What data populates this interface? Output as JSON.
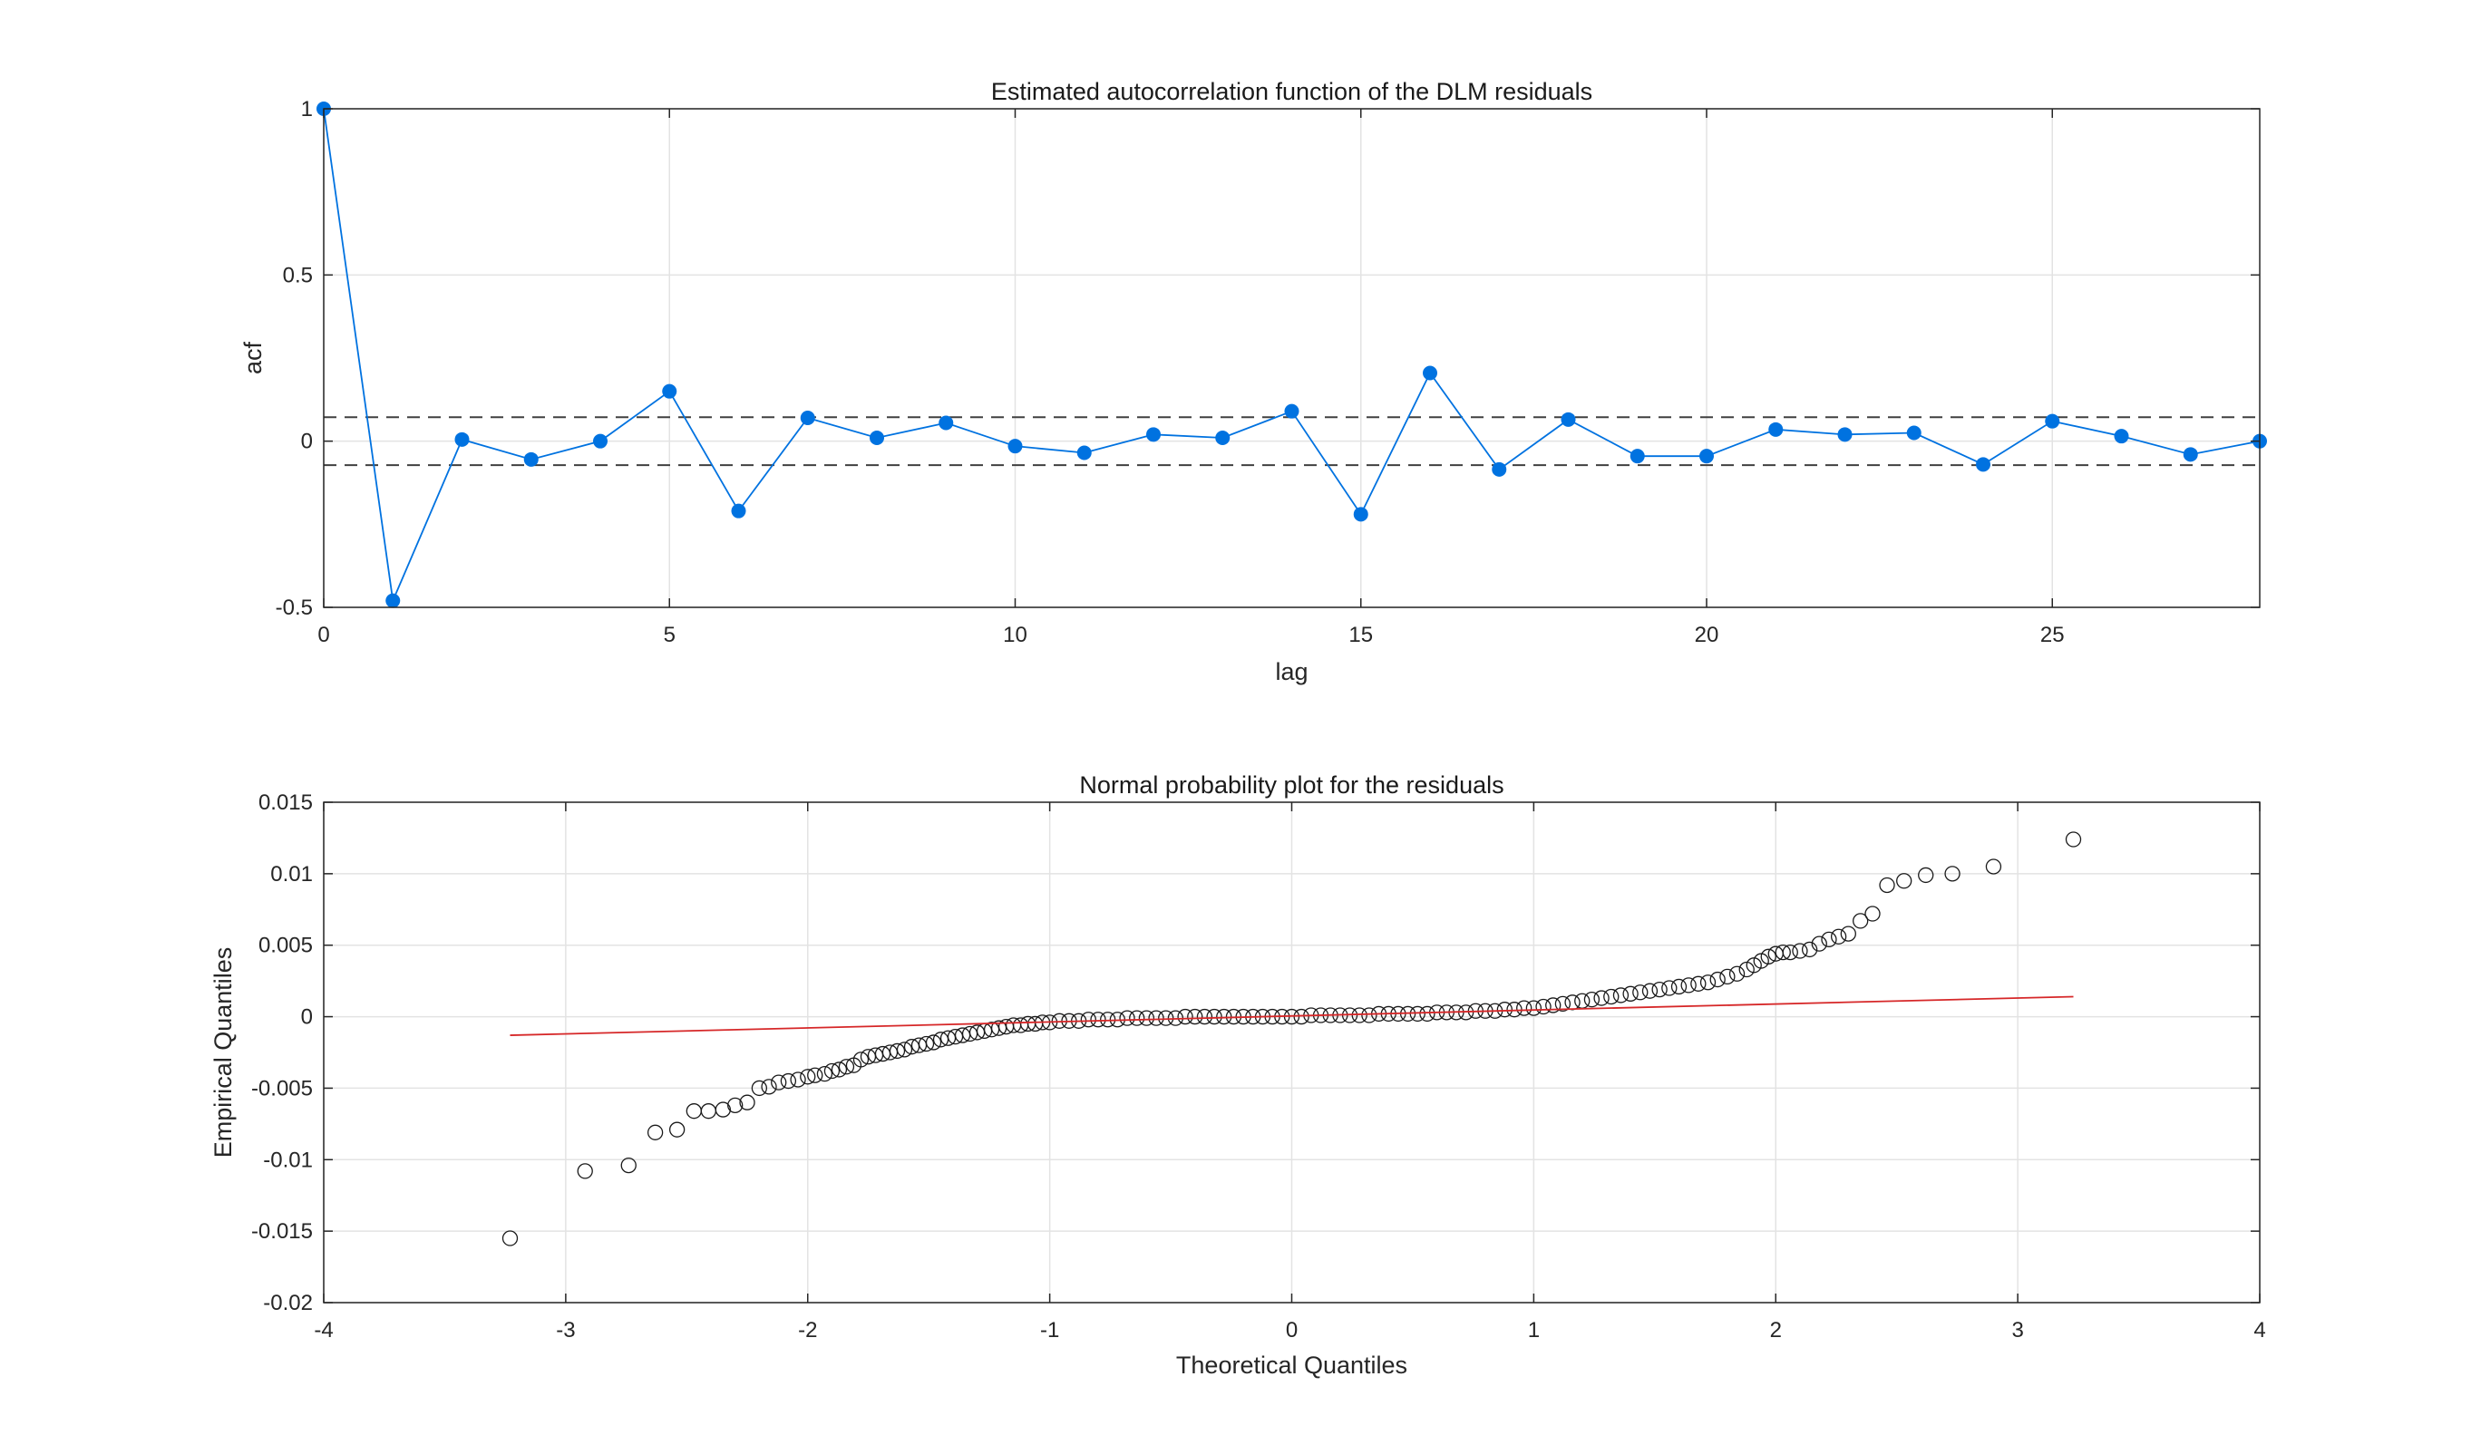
{
  "chart_data": [
    {
      "type": "line",
      "title": "Estimated autocorrelation function of the DLM residuals",
      "xlabel": "lag",
      "ylabel": "acf",
      "xlim": [
        0,
        28
      ],
      "ylim": [
        -0.5,
        1
      ],
      "xticks": [
        0,
        5,
        10,
        15,
        20,
        25
      ],
      "xtick_labels": [
        "0",
        "5",
        "10",
        "15",
        "20",
        "25"
      ],
      "yticks": [
        -0.5,
        0,
        0.5,
        1
      ],
      "ytick_labels": [
        "-0.5",
        "0",
        "0.5",
        "1"
      ],
      "grid": true,
      "series": [
        {
          "color": "#0072E0",
          "x": [
            0,
            1,
            2,
            3,
            4,
            5,
            6,
            7,
            8,
            9,
            10,
            11,
            12,
            13,
            14,
            15,
            16,
            17,
            18,
            19,
            20,
            21,
            22,
            23,
            24,
            25,
            26,
            27,
            28
          ],
          "values": [
            1.0,
            -0.48,
            0.005,
            -0.055,
            0.0,
            0.15,
            -0.21,
            0.07,
            0.01,
            0.055,
            -0.015,
            -0.035,
            0.02,
            0.01,
            0.09,
            -0.22,
            0.205,
            -0.085,
            0.065,
            -0.045,
            -0.045,
            0.035,
            0.02,
            0.025,
            -0.07,
            0.06,
            0.015,
            -0.04,
            0.0
          ]
        }
      ],
      "reference_lines": [
        {
          "y": 0.072,
          "style": "dashed",
          "color": "#404040"
        },
        {
          "y": -0.072,
          "style": "dashed",
          "color": "#404040"
        }
      ]
    },
    {
      "type": "scatter",
      "title": "Normal probability plot for the residuals",
      "xlabel": "Theoretical Quantiles",
      "ylabel": "Empirical Quantiles",
      "xlim": [
        -4,
        4
      ],
      "ylim": [
        -0.02,
        0.015
      ],
      "xticks": [
        -4,
        -3,
        -2,
        -1,
        0,
        1,
        2,
        3,
        4
      ],
      "xtick_labels": [
        "-4",
        "-3",
        "-2",
        "-1",
        "0",
        "1",
        "2",
        "3",
        "4"
      ],
      "yticks": [
        -0.02,
        -0.015,
        -0.01,
        -0.005,
        0,
        0.005,
        0.01,
        0.015
      ],
      "ytick_labels": [
        "-0.02",
        "-0.015",
        "-0.01",
        "-0.005",
        "0",
        "0.005",
        "0.01",
        "0.015"
      ],
      "grid": true,
      "marker": "open-circle",
      "marker_color": "#1a1a1a",
      "points": [
        [
          -3.23,
          -0.0155
        ],
        [
          -2.92,
          -0.0108
        ],
        [
          -2.74,
          -0.0104
        ],
        [
          -2.63,
          -0.0081
        ],
        [
          -2.54,
          -0.0079
        ],
        [
          -2.47,
          -0.0066
        ],
        [
          -2.41,
          -0.0066
        ],
        [
          -2.35,
          -0.0065
        ],
        [
          -2.3,
          -0.0062
        ],
        [
          -2.25,
          -0.006
        ],
        [
          -2.2,
          -0.005
        ],
        [
          -2.16,
          -0.0049
        ],
        [
          -2.12,
          -0.0046
        ],
        [
          -2.08,
          -0.0045
        ],
        [
          -2.04,
          -0.0044
        ],
        [
          -2.0,
          -0.0042
        ],
        [
          -1.97,
          -0.0041
        ],
        [
          -1.93,
          -0.004
        ],
        [
          -1.9,
          -0.0038
        ],
        [
          -1.87,
          -0.0037
        ],
        [
          -1.84,
          -0.0035
        ],
        [
          -1.81,
          -0.0034
        ],
        [
          -1.78,
          -0.003
        ],
        [
          -1.75,
          -0.0028
        ],
        [
          -1.72,
          -0.0027
        ],
        [
          -1.69,
          -0.0026
        ],
        [
          -1.66,
          -0.0025
        ],
        [
          -1.63,
          -0.0024
        ],
        [
          -1.6,
          -0.0023
        ],
        [
          -1.57,
          -0.0021
        ],
        [
          -1.54,
          -0.002
        ],
        [
          -1.51,
          -0.0019
        ],
        [
          -1.48,
          -0.0018
        ],
        [
          -1.45,
          -0.0016
        ],
        [
          -1.42,
          -0.0015
        ],
        [
          -1.39,
          -0.0014
        ],
        [
          -1.36,
          -0.0013
        ],
        [
          -1.33,
          -0.0012
        ],
        [
          -1.3,
          -0.0011
        ],
        [
          -1.27,
          -0.001
        ],
        [
          -1.24,
          -0.0009
        ],
        [
          -1.21,
          -0.0008
        ],
        [
          -1.18,
          -0.0007
        ],
        [
          -1.15,
          -0.0006
        ],
        [
          -1.12,
          -0.0006
        ],
        [
          -1.09,
          -0.0005
        ],
        [
          -1.06,
          -0.0005
        ],
        [
          -1.03,
          -0.0004
        ],
        [
          -1.0,
          -0.0004
        ],
        [
          -0.96,
          -0.0003
        ],
        [
          -0.92,
          -0.0003
        ],
        [
          -0.88,
          -0.0003
        ],
        [
          -0.84,
          -0.0002
        ],
        [
          -0.8,
          -0.0002
        ],
        [
          -0.76,
          -0.0002
        ],
        [
          -0.72,
          -0.0002
        ],
        [
          -0.68,
          -0.0001
        ],
        [
          -0.64,
          -0.0001
        ],
        [
          -0.6,
          -0.0001
        ],
        [
          -0.56,
          -0.0001
        ],
        [
          -0.52,
          -0.0001
        ],
        [
          -0.48,
          -0.0001
        ],
        [
          -0.44,
          0.0
        ],
        [
          -0.4,
          0.0
        ],
        [
          -0.36,
          0.0
        ],
        [
          -0.32,
          0.0
        ],
        [
          -0.28,
          0.0
        ],
        [
          -0.24,
          0.0
        ],
        [
          -0.2,
          0.0
        ],
        [
          -0.16,
          0.0
        ],
        [
          -0.12,
          0.0
        ],
        [
          -0.08,
          0.0
        ],
        [
          -0.04,
          0.0
        ],
        [
          0.0,
          0.0
        ],
        [
          0.04,
          0.0
        ],
        [
          0.08,
          0.0001
        ],
        [
          0.12,
          0.0001
        ],
        [
          0.16,
          0.0001
        ],
        [
          0.2,
          0.0001
        ],
        [
          0.24,
          0.0001
        ],
        [
          0.28,
          0.0001
        ],
        [
          0.32,
          0.0001
        ],
        [
          0.36,
          0.0002
        ],
        [
          0.4,
          0.0002
        ],
        [
          0.44,
          0.0002
        ],
        [
          0.48,
          0.0002
        ],
        [
          0.52,
          0.0002
        ],
        [
          0.56,
          0.0002
        ],
        [
          0.6,
          0.0003
        ],
        [
          0.64,
          0.0003
        ],
        [
          0.68,
          0.0003
        ],
        [
          0.72,
          0.0003
        ],
        [
          0.76,
          0.0004
        ],
        [
          0.8,
          0.0004
        ],
        [
          0.84,
          0.0004
        ],
        [
          0.88,
          0.0005
        ],
        [
          0.92,
          0.0005
        ],
        [
          0.96,
          0.0006
        ],
        [
          1.0,
          0.0006
        ],
        [
          1.04,
          0.0007
        ],
        [
          1.08,
          0.0008
        ],
        [
          1.12,
          0.0009
        ],
        [
          1.16,
          0.001
        ],
        [
          1.2,
          0.0011
        ],
        [
          1.24,
          0.0012
        ],
        [
          1.28,
          0.0013
        ],
        [
          1.32,
          0.0014
        ],
        [
          1.36,
          0.0015
        ],
        [
          1.4,
          0.0016
        ],
        [
          1.44,
          0.0017
        ],
        [
          1.48,
          0.0018
        ],
        [
          1.52,
          0.0019
        ],
        [
          1.56,
          0.002
        ],
        [
          1.6,
          0.0021
        ],
        [
          1.64,
          0.0022
        ],
        [
          1.68,
          0.0023
        ],
        [
          1.72,
          0.0024
        ],
        [
          1.76,
          0.0026
        ],
        [
          1.8,
          0.0028
        ],
        [
          1.84,
          0.003
        ],
        [
          1.88,
          0.0033
        ],
        [
          1.91,
          0.0036
        ],
        [
          1.94,
          0.0039
        ],
        [
          1.97,
          0.0042
        ],
        [
          2.0,
          0.0044
        ],
        [
          2.03,
          0.0045
        ],
        [
          2.06,
          0.0045
        ],
        [
          2.1,
          0.0046
        ],
        [
          2.14,
          0.0047
        ],
        [
          2.18,
          0.0051
        ],
        [
          2.22,
          0.0054
        ],
        [
          2.26,
          0.0056
        ],
        [
          2.3,
          0.0058
        ],
        [
          2.35,
          0.0067
        ],
        [
          2.4,
          0.0072
        ],
        [
          2.46,
          0.0092
        ],
        [
          2.53,
          0.0095
        ],
        [
          2.62,
          0.0099
        ],
        [
          2.73,
          0.01
        ],
        [
          2.9,
          0.0105
        ],
        [
          3.23,
          0.0124
        ]
      ],
      "fit_line": {
        "color": "#d62728",
        "x": [
          -3.23,
          3.23
        ],
        "y": [
          -0.0013,
          0.0014
        ]
      }
    }
  ]
}
